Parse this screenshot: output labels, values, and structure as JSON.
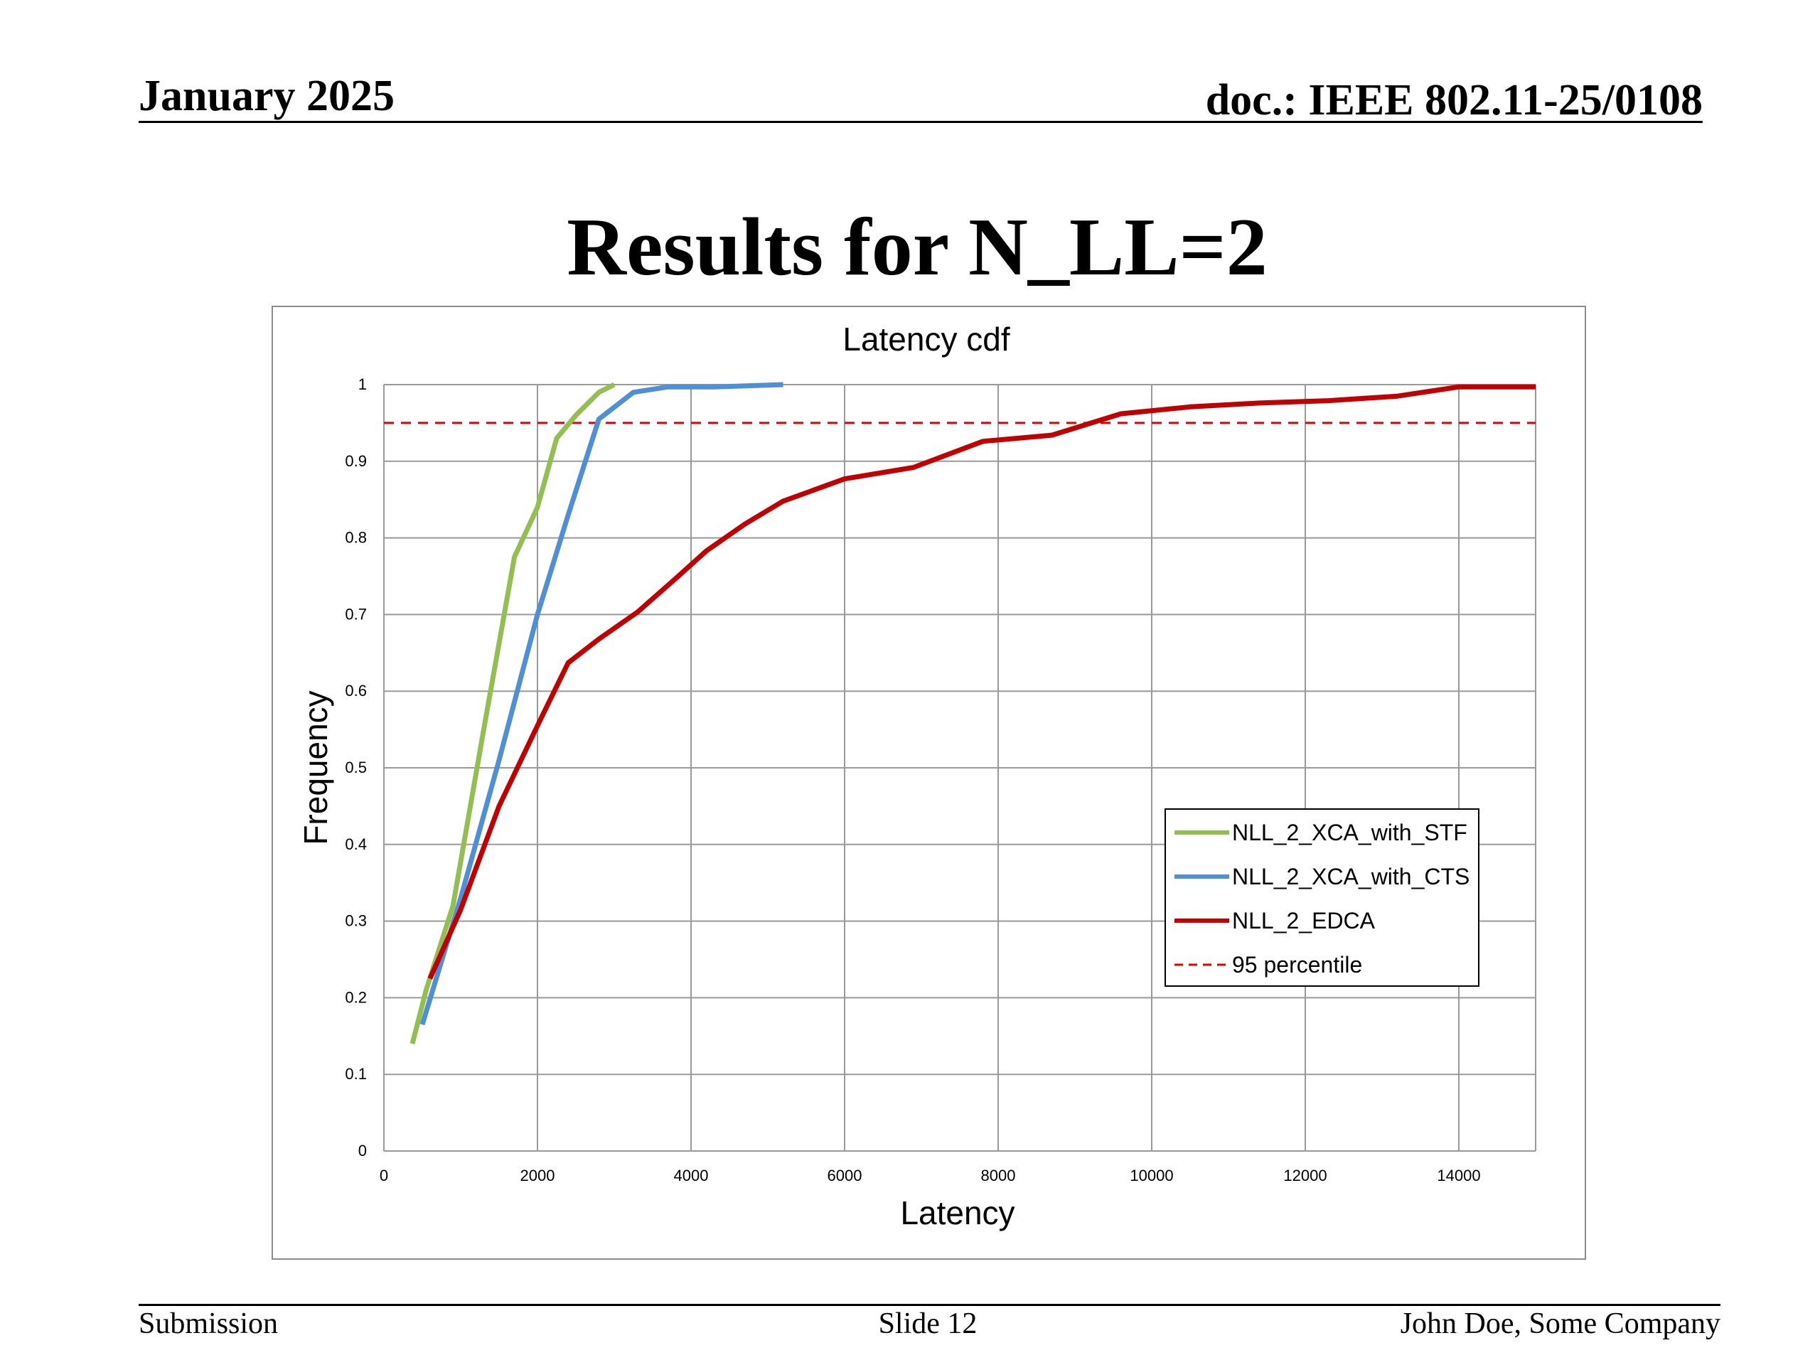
{
  "header": {
    "date": "January 2025",
    "doc": "doc.: IEEE 802.11-25/0108"
  },
  "slide_title": "Results for N_LL=2",
  "footer": {
    "left": "Submission",
    "center": "Slide 12",
    "right": "John Doe, Some Company"
  },
  "chart_data": {
    "type": "line",
    "title": "Latency cdf",
    "xlabel": "Latency",
    "ylabel": "Frequency",
    "xlim": [
      0,
      15000
    ],
    "ylim": [
      0,
      1
    ],
    "xticks": [
      0,
      2000,
      4000,
      6000,
      8000,
      10000,
      12000,
      14000
    ],
    "yticks": [
      0,
      0.1,
      0.2,
      0.3,
      0.4,
      0.5,
      0.6,
      0.7,
      0.8,
      0.9,
      1
    ],
    "ytick_labels": [
      "0",
      "0.1",
      "0.2",
      "0.3",
      "0.4",
      "0.5",
      "0.6",
      "0.7",
      "0.8",
      "0.9",
      "1"
    ],
    "grid": true,
    "legend_position": "right-center",
    "series": [
      {
        "name": "NLL_2_XCA_with_STF",
        "color": "#92be52",
        "x": [
          370,
          550,
          900,
          1300,
          1700,
          2000,
          2250,
          2500,
          2800,
          3000
        ],
        "y": [
          0.14,
          0.21,
          0.32,
          0.55,
          0.775,
          0.84,
          0.93,
          0.96,
          0.99,
          1.0
        ]
      },
      {
        "name": "NLL_2_XCA_with_CTS",
        "color": "#4f8fd6",
        "x": [
          500,
          1000,
          1500,
          2000,
          2400,
          2800,
          3250,
          3700,
          4300,
          5200
        ],
        "y": [
          0.165,
          0.33,
          0.51,
          0.7,
          0.83,
          0.955,
          0.99,
          0.997,
          0.997,
          1.0
        ]
      },
      {
        "name": "NLL_2_EDCA",
        "color": "#c00000",
        "x": [
          600,
          1000,
          1500,
          2000,
          2400,
          2800,
          3300,
          3800,
          4200,
          4700,
          5200,
          6000,
          6900,
          7800,
          8700,
          9600,
          10500,
          11400,
          12300,
          13200,
          14000,
          15000
        ],
        "y": [
          0.225,
          0.315,
          0.45,
          0.555,
          0.637,
          0.668,
          0.703,
          0.747,
          0.783,
          0.818,
          0.848,
          0.877,
          0.892,
          0.926,
          0.934,
          0.962,
          0.971,
          0.976,
          0.979,
          0.985,
          0.997,
          0.997
        ]
      }
    ],
    "reference_line": {
      "name": "95 percentile",
      "y": 0.95,
      "color": "#e00000",
      "style": "dashed"
    }
  }
}
